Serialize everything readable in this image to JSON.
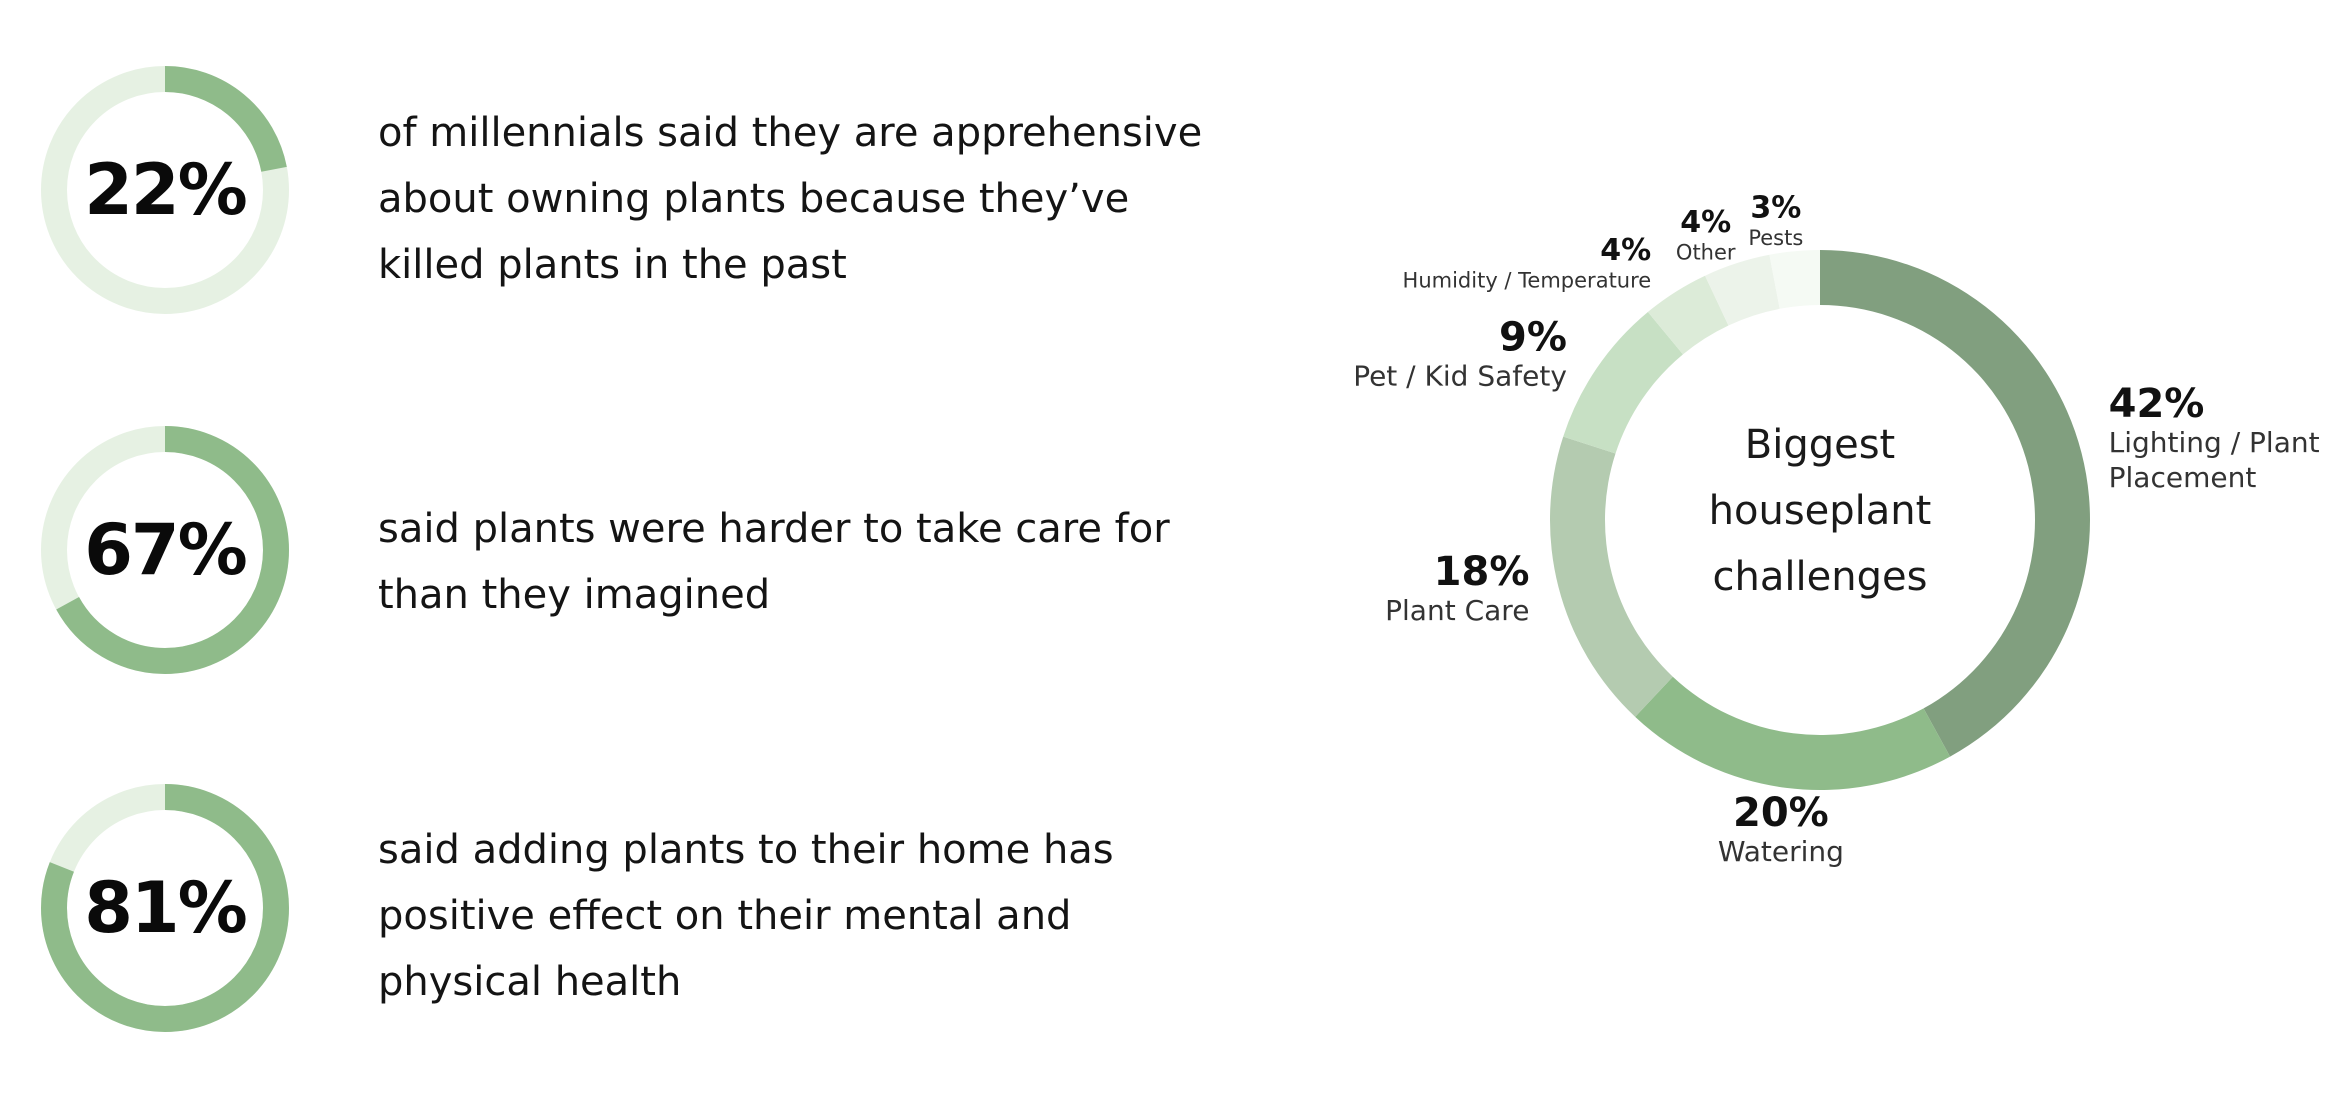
{
  "stats": [
    {
      "percent_label": "22%",
      "value": 0.22,
      "lines": [
        "of millennials said they are apprehensive",
        "about owning plants because they’ve",
        "killed plants in the past"
      ]
    },
    {
      "percent_label": "67%",
      "value": 0.67,
      "lines": [
        "said plants were harder to take care for",
        "than they imagined"
      ]
    },
    {
      "percent_label": "81%",
      "value": 0.81,
      "lines": [
        "said adding plants to their home has",
        "positive effect on their mental and",
        "physical health"
      ]
    }
  ],
  "colors": {
    "ring_fill": "#8fbb8a",
    "ring_track": "#e6f1e3",
    "slice_colors": [
      "#819f7f",
      "#8fbb8a",
      "#b4cbb0",
      "#c7e0c4",
      "#dcebd8",
      "#ecf3ea",
      "#f5faf4"
    ]
  },
  "chart_data": {
    "type": "pie",
    "style": "donut",
    "title_lines": [
      "Biggest",
      "houseplant",
      "challenges"
    ],
    "categories": [
      "Lighting / Plant Placement",
      "Watering",
      "Plant Care",
      "Pet / Kid Safety",
      "Humidity / Temperature",
      "Other",
      "Pests"
    ],
    "values": [
      42,
      20,
      18,
      9,
      4,
      4,
      3
    ],
    "labels": [
      {
        "pct": "42%",
        "name_lines": [
          "Lighting / Plant",
          "Placement"
        ]
      },
      {
        "pct": "20%",
        "name_lines": [
          "Watering"
        ]
      },
      {
        "pct": "18%",
        "name_lines": [
          "Plant Care"
        ]
      },
      {
        "pct": "9%",
        "name_lines": [
          "Pet / Kid Safety"
        ]
      },
      {
        "pct": "4%",
        "name_lines": [
          "Humidity / Temperature"
        ]
      },
      {
        "pct": "4%",
        "name_lines": [
          "Other"
        ]
      },
      {
        "pct": "3%",
        "name_lines": [
          "Pests"
        ]
      }
    ]
  }
}
